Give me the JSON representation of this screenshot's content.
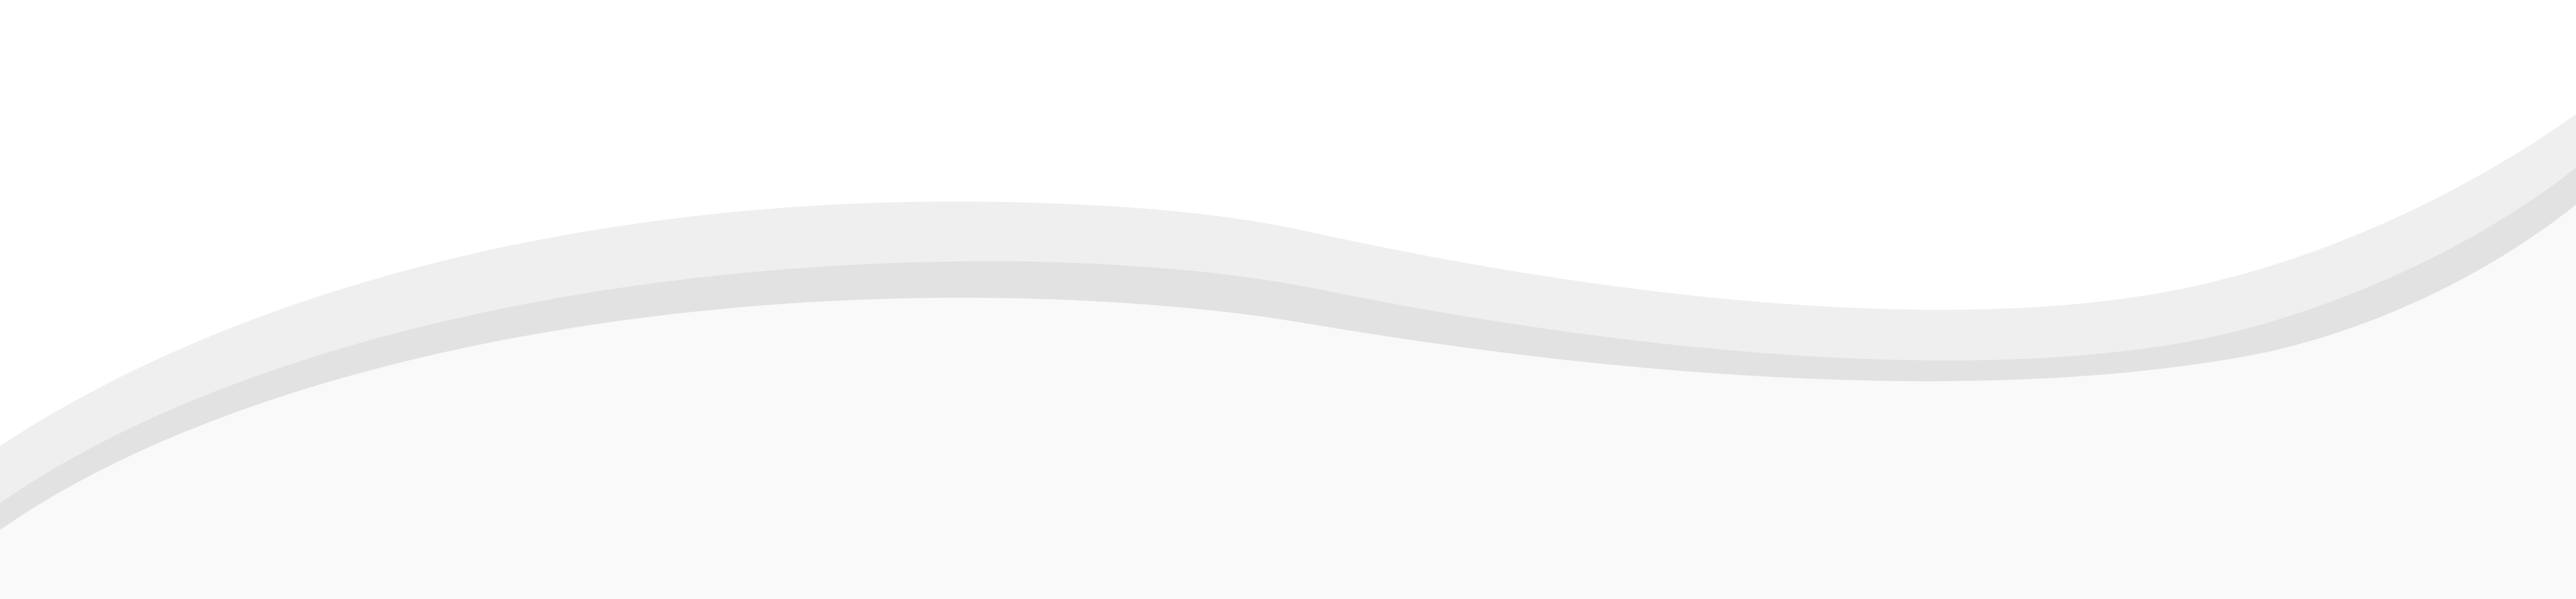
{
  "colors": {
    "background": "#ffffff",
    "wave_back": "#efefef",
    "wave_middle": "#e2e2e2",
    "wave_front": "#f9f9f9"
  },
  "scene": {
    "description_icon": "layered-wave-divider"
  }
}
